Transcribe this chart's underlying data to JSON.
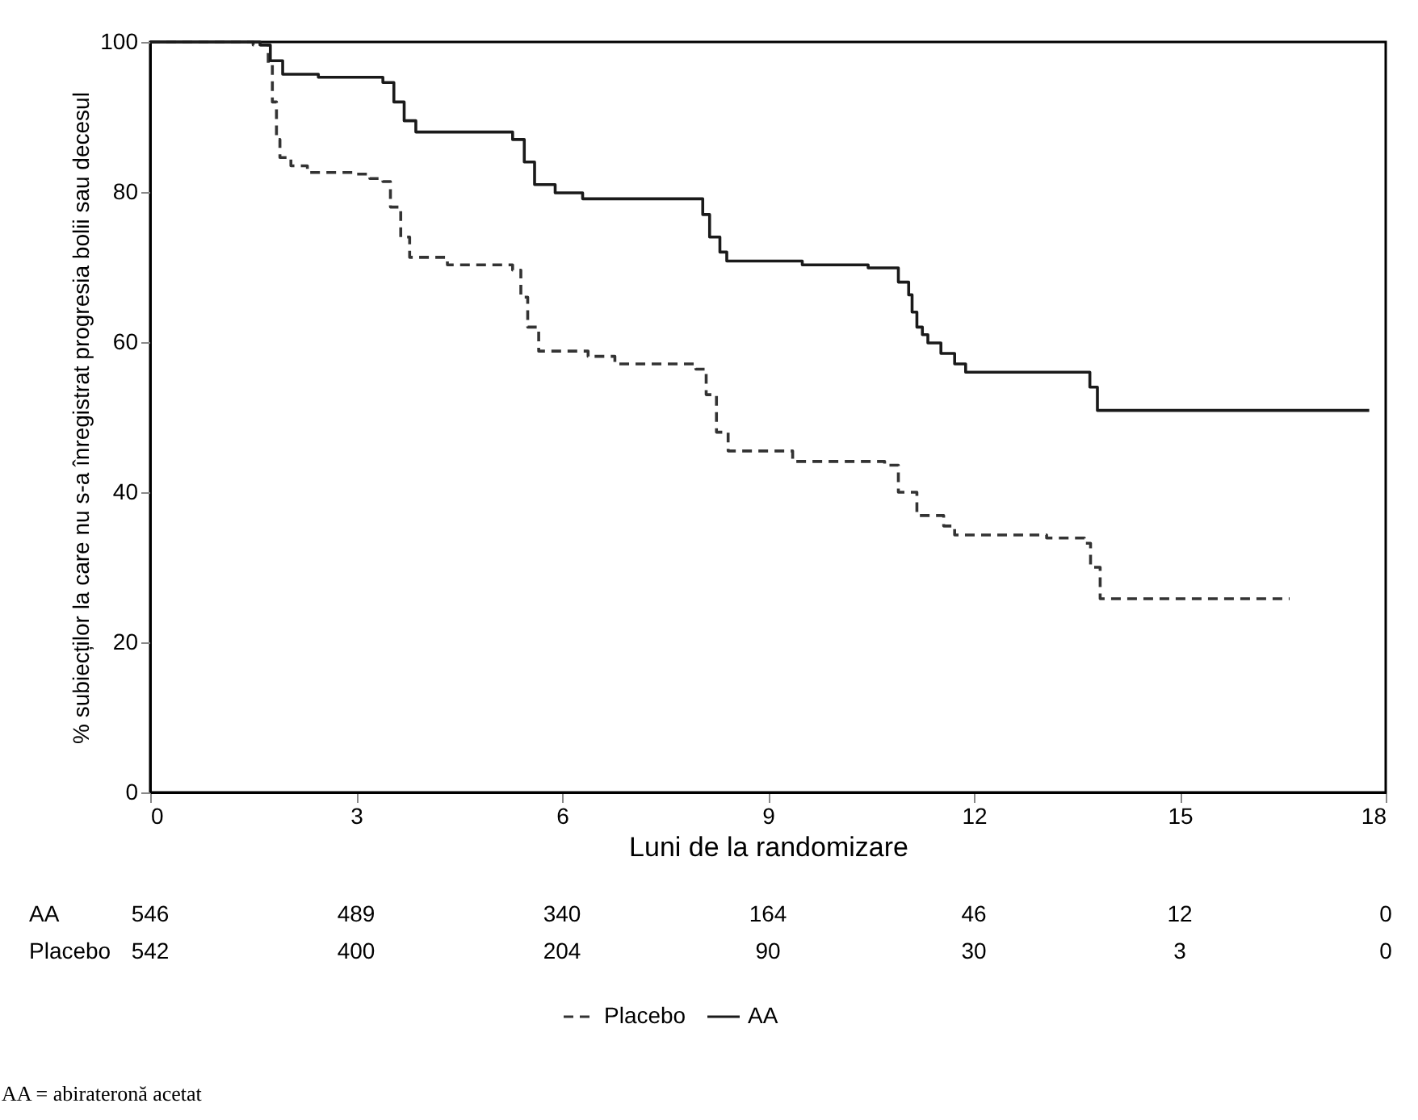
{
  "chart_data": {
    "type": "step",
    "xlabel": "Luni de la randomizare",
    "ylabel": "% subiecților la care nu s-a înregistrat progresia bolii sau decesul",
    "xlim": [
      0,
      18
    ],
    "xticks": [
      0,
      3,
      6,
      9,
      12,
      15,
      18
    ],
    "ylim": [
      0,
      100
    ],
    "yticks": [
      0,
      20,
      40,
      60,
      80,
      100
    ],
    "grid": false,
    "legend": "bottom",
    "marker": "none",
    "series": [
      {
        "name": "Placebo",
        "color": "#333333",
        "line_style": "dashed",
        "x": [
          0,
          1.5,
          1.72,
          1.78,
          1.84,
          1.89,
          2.05,
          2.29,
          3.0,
          3.2,
          3.39,
          3.5,
          3.65,
          3.78,
          4.33,
          5.28,
          5.4,
          5.5,
          5.66,
          6.38,
          6.77,
          7.95,
          8.1,
          8.25,
          8.42,
          9.36,
          10.7,
          10.9,
          11.17,
          11.56,
          11.72,
          13.06,
          13.61,
          13.7,
          13.84,
          16.6
        ],
        "values": [
          100,
          99.6,
          97,
          92,
          87,
          84.6,
          83.5,
          82.6,
          82.4,
          81.8,
          81.4,
          78,
          74,
          71.3,
          70.3,
          69.6,
          66,
          62,
          58.8,
          58.1,
          57.1,
          56.4,
          53,
          48,
          45.5,
          44.1,
          43.6,
          40,
          36.9,
          35.5,
          34.3,
          33.9,
          33.2,
          30,
          25.8,
          25.8
        ]
      },
      {
        "name": "AA",
        "color": "#1a1a1a",
        "line_style": "solid",
        "x": [
          0,
          1.6,
          1.75,
          1.93,
          2.45,
          3.39,
          3.55,
          3.7,
          3.87,
          5.28,
          5.45,
          5.6,
          5.9,
          6.3,
          8.05,
          8.15,
          8.3,
          8.4,
          9.5,
          10.46,
          10.9,
          11.05,
          11.1,
          11.17,
          11.25,
          11.33,
          11.52,
          11.72,
          11.88,
          13.69,
          13.8,
          17.76
        ],
        "values": [
          100,
          99.6,
          97.5,
          95.7,
          95.3,
          94.6,
          92,
          89.5,
          88,
          87,
          84,
          81,
          79.9,
          79.1,
          77,
          74,
          72,
          70.8,
          70.3,
          69.9,
          68,
          66.3,
          64,
          62,
          61,
          59.9,
          58.5,
          57.1,
          56,
          54,
          50.9,
          50.9
        ]
      }
    ],
    "annotations": [
      "AA",
      "546",
      "489",
      "340",
      "164",
      "46",
      "12",
      "0",
      "Placebo",
      "542",
      "400",
      "204",
      "90",
      "30",
      "3",
      "0",
      "AA = abirateronă acetat"
    ]
  }
}
